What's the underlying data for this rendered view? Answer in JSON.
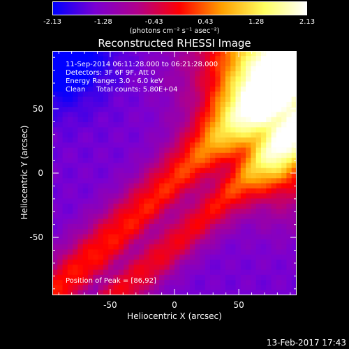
{
  "colorbar": {
    "ticks": [
      "-2.13",
      "-1.28",
      "-0.43",
      "0.43",
      "1.28",
      "2.13"
    ],
    "min": -2.13,
    "max": 2.13,
    "unit_label": "(photons cm⁻² s⁻¹ asec⁻²)",
    "colors": [
      "#0000ff",
      "#7a00d2",
      "#b0008a",
      "#ff0000",
      "#ffa000",
      "#ffff60",
      "#ffffff"
    ]
  },
  "chart_data": {
    "type": "heatmap",
    "title": "Reconstructed RHESSI Image",
    "xlabel": "Heliocentric X (arcsec)",
    "ylabel": "Heliocentric Y (arcsec)",
    "xlim": [
      -95,
      95
    ],
    "ylim": [
      -95,
      95
    ],
    "xticks": [
      "-50",
      "0",
      "50"
    ],
    "yticks": [
      "50",
      "0",
      "-50"
    ],
    "xtick_values": [
      -50,
      0,
      50
    ],
    "ytick_values": [
      50,
      0,
      -50
    ],
    "annotations": {
      "time_range": "11-Sep-2014 06:11:28.000 to 06:21:28.000",
      "detectors": "Detectors: 3F 6F 9F, Att 0",
      "energy_range": "Energy Range: 3.0 - 6.0 keV",
      "method_counts": "Clean     Total counts: 5.80E+04"
    },
    "peak_label": "Position of Peak = [86,92]",
    "peak_position": [
      86,
      92
    ]
  },
  "footer": {
    "timestamp": "13-Feb-2017 17:43"
  }
}
